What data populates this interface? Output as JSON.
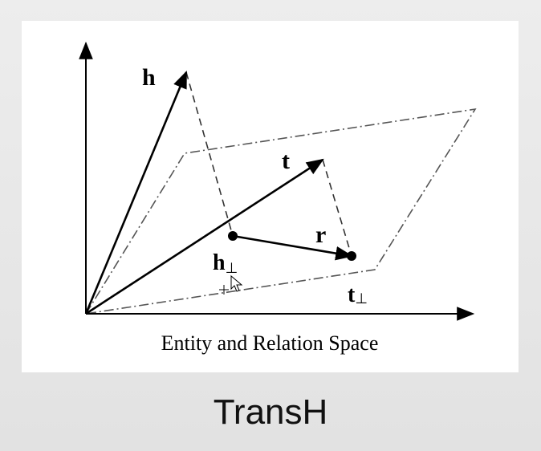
{
  "diagram": {
    "labels": {
      "h": "h",
      "t": "t",
      "r": "r",
      "h_perp_base": "h",
      "t_perp_base": "t",
      "perp_symbol": "⊥"
    },
    "caption": "Entity and Relation Space"
  },
  "title": "TransH"
}
